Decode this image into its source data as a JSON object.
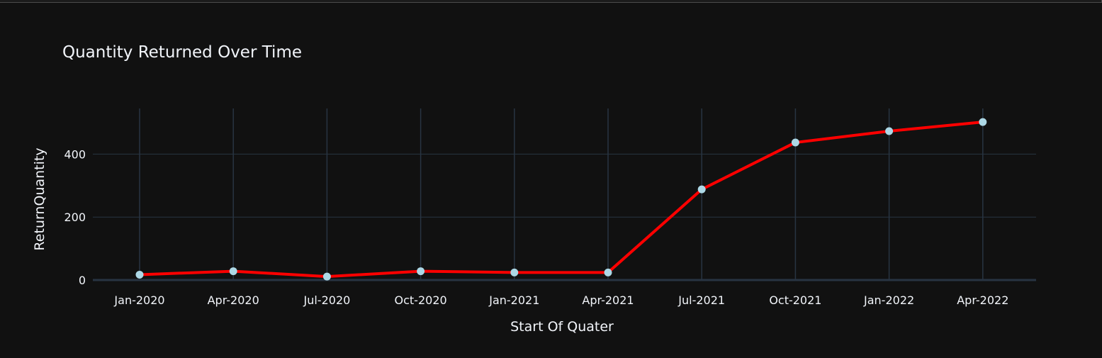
{
  "chart_data": {
    "type": "line",
    "title": "Quantity Returned Over Time",
    "xlabel": "Start Of Quater",
    "ylabel": "ReturnQuantity",
    "categories": [
      "Jan-2020",
      "Apr-2020",
      "Jul-2020",
      "Oct-2020",
      "Jan-2021",
      "Apr-2021",
      "Jul-2021",
      "Oct-2021",
      "Jan-2022",
      "Apr-2022"
    ],
    "series": [
      {
        "values": [
          17,
          28,
          11,
          28,
          24,
          24,
          288,
          437,
          473,
          502
        ],
        "line_color": "#ff0000",
        "marker_color": "#add8e6"
      }
    ],
    "yticks": [
      0,
      200,
      400
    ],
    "ylim": [
      0,
      545
    ],
    "grid": true,
    "background_color": "#111111",
    "grid_color": "#283442",
    "text_color": "#f2f5fa"
  }
}
